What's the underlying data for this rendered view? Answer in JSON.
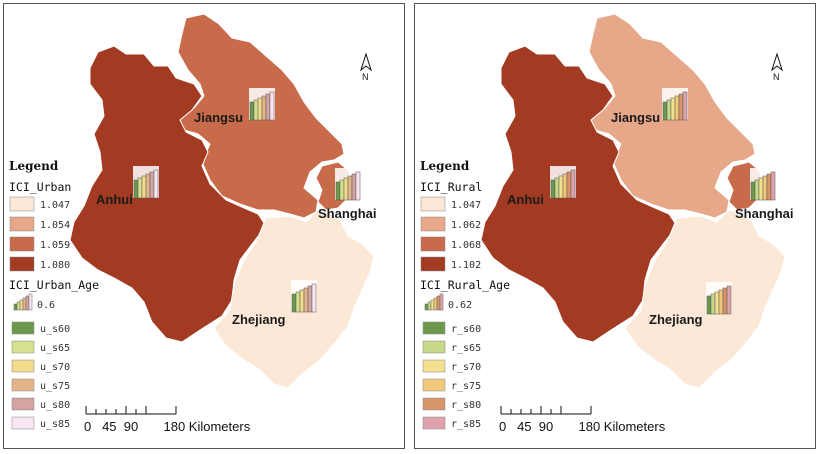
{
  "panels": [
    {
      "id": "left",
      "legend_title": "Legend",
      "class_title": "ICI_Urban",
      "class_items": [
        {
          "label": "1.047",
          "color": "#fbe8d6"
        },
        {
          "label": "1.054",
          "color": "#e6a888"
        },
        {
          "label": "1.059",
          "color": "#c86b4b"
        },
        {
          "label": "1.080",
          "color": "#a33a22"
        }
      ],
      "age_title": "ICI_Urban_Age",
      "age_ref_label": "0.6",
      "age_items": [
        {
          "label": "u_s60",
          "color": "#6b9a4e"
        },
        {
          "label": "u_s65",
          "color": "#d6e08e"
        },
        {
          "label": "u_s70",
          "color": "#f2dc8a"
        },
        {
          "label": "u_s75",
          "color": "#e2b58a"
        },
        {
          "label": "u_s80",
          "color": "#d4a3a3"
        },
        {
          "label": "u_s85",
          "color": "#fae6f2"
        }
      ],
      "provinces": {
        "jiangsu": {
          "name": "Jiangsu",
          "color": "#c86b4b"
        },
        "anhui": {
          "name": "Anhui",
          "color": "#a33a22"
        },
        "shanghai": {
          "name": "Shanghai",
          "color": "#c86b4b"
        },
        "zhejiang": {
          "name": "Zhejiang",
          "color": "#fbe8d6"
        }
      },
      "scale": {
        "ticks": "0   45  90       180 Kilometers"
      },
      "north": "N"
    },
    {
      "id": "right",
      "legend_title": "Legend",
      "class_title": "ICI_Rural",
      "class_items": [
        {
          "label": "1.047",
          "color": "#fbe8d6"
        },
        {
          "label": "1.062",
          "color": "#e6a888"
        },
        {
          "label": "1.068",
          "color": "#c86b4b"
        },
        {
          "label": "1.102",
          "color": "#a33a22"
        }
      ],
      "age_title": "ICI_Rural_Age",
      "age_ref_label": "0.62",
      "age_items": [
        {
          "label": "r_s60",
          "color": "#6b9a4e"
        },
        {
          "label": "r_s65",
          "color": "#c6d98a"
        },
        {
          "label": "r_s70",
          "color": "#f4e08e"
        },
        {
          "label": "r_s75",
          "color": "#f2c97a"
        },
        {
          "label": "r_s80",
          "color": "#d9956a"
        },
        {
          "label": "r_s85",
          "color": "#e0a3ad"
        }
      ],
      "provinces": {
        "jiangsu": {
          "name": "Jiangsu",
          "color": "#e6a888"
        },
        "anhui": {
          "name": "Anhui",
          "color": "#a33a22"
        },
        "shanghai": {
          "name": "Shanghai",
          "color": "#c86b4b"
        },
        "zhejiang": {
          "name": "Zhejiang",
          "color": "#fbe8d6"
        }
      },
      "scale": {
        "ticks": "0   45  90       180 Kilometers"
      },
      "north": "N"
    }
  ]
}
